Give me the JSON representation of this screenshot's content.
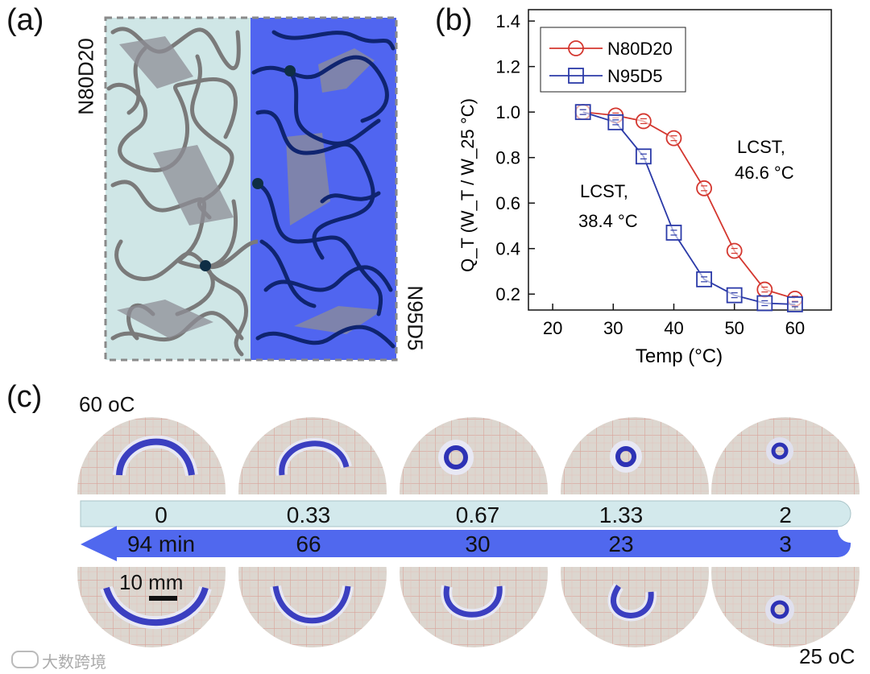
{
  "panels": {
    "a": "(a)",
    "b": "(b)",
    "c": "(c)"
  },
  "schematic": {
    "left_label": "N80D20",
    "right_label": "N95D5"
  },
  "colors": {
    "n80d20": "#d4372f",
    "n95d5": "#2b3aa8",
    "left_bg": "#cfe6e6",
    "right_bg": "#5065f0",
    "chain_gray": "#7a7a7a",
    "chain_navy": "#0f2470",
    "arrow_light": "#d3e9ec",
    "arrow_blue": "#5068ee"
  },
  "chart_data": {
    "type": "line",
    "title": "",
    "xlabel": "Temp (°C)",
    "ylabel": "Q_T (W_T / W_25 °C)",
    "xlim": [
      16,
      66
    ],
    "ylim": [
      0.13,
      1.45
    ],
    "xticks": [
      20,
      30,
      40,
      50,
      60
    ],
    "yticks": [
      0.2,
      0.4,
      0.6,
      0.8,
      1.0,
      1.2,
      1.4
    ],
    "xtick_labels": [
      "20",
      "30",
      "40",
      "50",
      "60"
    ],
    "ytick_labels": [
      "0.2",
      "0.4",
      "0.6",
      "0.8",
      "1.0",
      "1.2",
      "1.4"
    ],
    "legend_position": "top-left",
    "series": [
      {
        "name": "N80D20",
        "marker": "circle",
        "color": "#d4372f",
        "x": [
          25,
          30.4,
          35,
          40,
          45,
          50,
          55,
          60
        ],
        "y": [
          1.0,
          0.985,
          0.96,
          0.885,
          0.665,
          0.39,
          0.22,
          0.18
        ]
      },
      {
        "name": "N95D5",
        "marker": "square",
        "color": "#2b3aa8",
        "x": [
          25,
          30.4,
          35,
          40,
          45,
          50,
          55,
          60
        ],
        "y": [
          1.0,
          0.955,
          0.805,
          0.47,
          0.265,
          0.195,
          0.16,
          0.155
        ]
      }
    ],
    "annotations": [
      {
        "line1": "LCST,",
        "line2": "46.6 °C"
      },
      {
        "line1": "LCST,",
        "line2": "38.4 °C"
      }
    ]
  },
  "photos": {
    "top_temp": "60 oC",
    "bottom_temp": "25 oC",
    "scale_bar": "10 mm",
    "top_labels": [
      "0",
      "0.33",
      "0.67",
      "1.33",
      "2"
    ],
    "bottom_labels": [
      "94 min",
      "66",
      "30",
      "23",
      "3"
    ]
  },
  "watermark": "大数跨境"
}
